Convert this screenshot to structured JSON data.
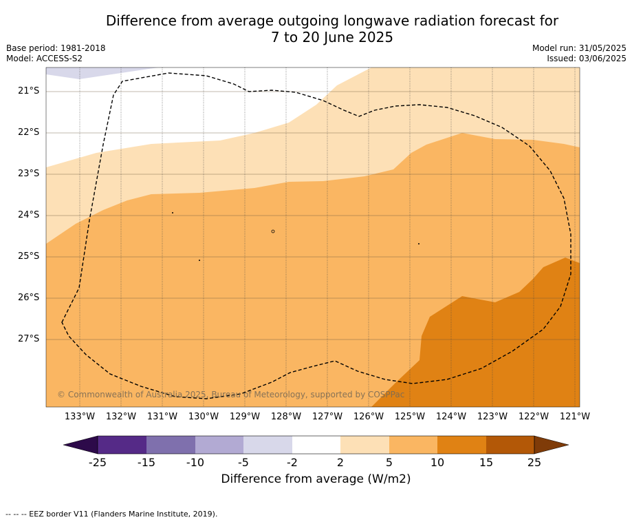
{
  "title_line1": "Difference from average outgoing longwave radiation forecast for",
  "title_line2": "7 to 20 June 2025",
  "base_period": "Base period: 1981-2018",
  "model": "Model: ACCESS-S2",
  "model_run": "Model run: 31/05/2025",
  "issued": "Issued: 03/06/2025",
  "copyright": "© Commonwealth of Australia 2025, Bureau of Meteorology, supported by COSPPac",
  "footer": "--  --  -- EEZ border V11 (Flanders Marine Institute, 2019).",
  "x_ticks": [
    "133°W",
    "132°W",
    "131°W",
    "130°W",
    "129°W",
    "128°W",
    "127°W",
    "126°W",
    "125°W",
    "124°W",
    "123°W",
    "122°W",
    "121°W"
  ],
  "y_ticks": [
    "21°S",
    "22°S",
    "23°S",
    "24°S",
    "25°S",
    "26°S",
    "27°S"
  ],
  "colorbar": {
    "title": "Difference from average (W/m2)",
    "labels": [
      "-25",
      "-15",
      "-10",
      "-5",
      "-2",
      "2",
      "5",
      "10",
      "15",
      "25"
    ],
    "colors": [
      "#2d0a4a",
      "#552a87",
      "#7f70ad",
      "#b2aad3",
      "#d8d8ea",
      "#ffffff",
      "#fde0b6",
      "#fab662",
      "#e08214",
      "#b35807",
      "#7f3b08"
    ]
  },
  "map_colors": {
    "light_purple": "#d8d8ea",
    "white": "#ffffff",
    "light_orange": "#fde0b6",
    "orange": "#fab662",
    "dark_orange": "#e08214"
  }
}
